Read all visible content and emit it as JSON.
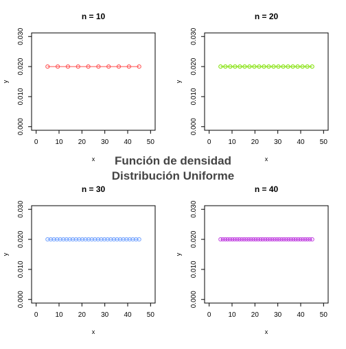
{
  "figure": {
    "title_line1": "Función de densidad",
    "title_line2": "Distribución Uniforme"
  },
  "chart_data": [
    {
      "type": "line",
      "title": "n = 10",
      "xlabel": "x",
      "ylabel": "y",
      "xlim": [
        0,
        50
      ],
      "ylim": [
        0,
        0.03
      ],
      "xticks": [
        "0",
        "10",
        "20",
        "30",
        "40",
        "50"
      ],
      "yticks": [
        "0.000",
        "0.010",
        "0.020",
        "0.030"
      ],
      "color": "#ff4d4d",
      "x_start": 5,
      "x_end": 45,
      "n": 10,
      "y": 0.02
    },
    {
      "type": "line",
      "title": "n = 20",
      "xlabel": "x",
      "ylabel": "y",
      "xlim": [
        0,
        50
      ],
      "ylim": [
        0,
        0.03
      ],
      "xticks": [
        "0",
        "10",
        "20",
        "30",
        "40",
        "50"
      ],
      "yticks": [
        "0.000",
        "0.010",
        "0.020",
        "0.030"
      ],
      "color": "#7fe000",
      "x_start": 5,
      "x_end": 45,
      "n": 20,
      "y": 0.02
    },
    {
      "type": "line",
      "title": "n = 30",
      "xlabel": "x",
      "ylabel": "y",
      "xlim": [
        0,
        50
      ],
      "ylim": [
        0,
        0.03
      ],
      "xticks": [
        "0",
        "10",
        "20",
        "30",
        "40",
        "50"
      ],
      "yticks": [
        "0.000",
        "0.010",
        "0.020",
        "0.030"
      ],
      "color": "#6fa0ff",
      "x_start": 5,
      "x_end": 45,
      "n": 30,
      "y": 0.02
    },
    {
      "type": "line",
      "title": "n = 40",
      "xlabel": "x",
      "ylabel": "y",
      "xlim": [
        0,
        50
      ],
      "ylim": [
        0,
        0.03
      ],
      "xticks": [
        "0",
        "10",
        "20",
        "30",
        "40",
        "50"
      ],
      "yticks": [
        "0.000",
        "0.010",
        "0.020",
        "0.030"
      ],
      "color": "#c040e0",
      "x_start": 5,
      "x_end": 45,
      "n": 40,
      "y": 0.02
    }
  ]
}
